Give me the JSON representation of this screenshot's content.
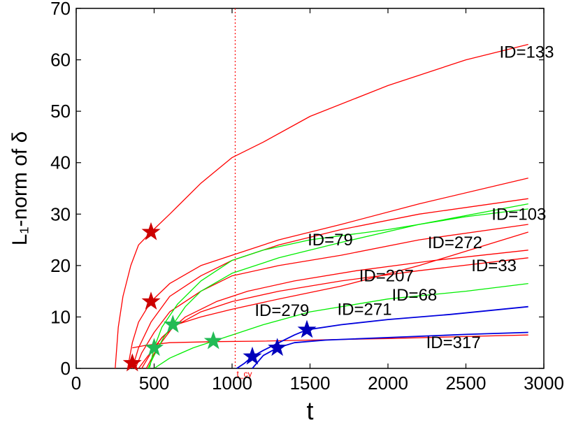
{
  "chart_data": {
    "type": "line",
    "title": "",
    "xlabel": "t",
    "ylabel": "L₁-norm of δ",
    "xlim": [
      0,
      3000
    ],
    "ylim": [
      0,
      70
    ],
    "xticks": [
      0,
      500,
      1000,
      1500,
      2000,
      2500,
      3000
    ],
    "yticks": [
      0,
      10,
      20,
      30,
      40,
      50,
      60,
      70
    ],
    "grid": false,
    "legend": "none",
    "vline": {
      "x": 1020,
      "label": "t_cy",
      "color": "#ff0000",
      "style": "dotted"
    },
    "series": [
      {
        "group": "red",
        "color": "#ff0000",
        "x": [
          250,
          270,
          300,
          350,
          400,
          480,
          600,
          800,
          1000,
          1200,
          1500,
          2000,
          2500,
          2900
        ],
        "y": [
          0,
          8,
          14,
          20,
          24,
          26.5,
          30,
          36,
          41,
          44,
          49,
          55,
          60,
          63
        ]
      },
      {
        "group": "red",
        "color": "#ff0000",
        "x": [
          330,
          360,
          400,
          480,
          600,
          800,
          1000,
          1300,
          1700,
          2200,
          2900
        ],
        "y": [
          0,
          5,
          9,
          13,
          16.5,
          20,
          22,
          25,
          28,
          32,
          37
        ]
      },
      {
        "group": "red",
        "color": "#ff0000",
        "x": [
          360,
          400,
          480,
          600,
          800,
          1000,
          1300,
          1700,
          2200,
          2900
        ],
        "y": [
          0,
          4,
          9,
          14,
          18,
          21,
          24,
          27,
          30,
          33
        ]
      },
      {
        "group": "red",
        "color": "#ff0000",
        "x": [
          380,
          420,
          500,
          600,
          800,
          1000,
          1300,
          1700,
          2200,
          2900
        ],
        "y": [
          0,
          3,
          7,
          11,
          15,
          18,
          20,
          22,
          25,
          28
        ]
      },
      {
        "group": "red",
        "color": "#ff0000",
        "x": [
          400,
          450,
          550,
          700,
          900,
          1100,
          1400,
          1800,
          2300,
          2900
        ],
        "y": [
          0,
          2,
          6,
          10,
          13,
          15,
          17,
          19,
          21,
          23
        ]
      },
      {
        "group": "red",
        "color": "#ff0000",
        "x": [
          420,
          480,
          550,
          640,
          800,
          1000,
          1300,
          1700,
          2200,
          2900
        ],
        "y": [
          0,
          3,
          6,
          8.5,
          10,
          11.5,
          13.5,
          16,
          20,
          26.5
        ]
      },
      {
        "group": "red",
        "color": "#ff0000",
        "x": [
          450,
          520,
          620,
          800,
          1000,
          1300,
          1700,
          2200,
          2900
        ],
        "y": [
          0,
          4,
          8,
          11,
          13,
          15,
          17,
          19,
          21.5
        ]
      },
      {
        "group": "red",
        "color": "#ff0000",
        "x": [
          360,
          450,
          600,
          900,
          1200,
          1500,
          2000,
          2500,
          2900
        ],
        "y": [
          4,
          4.5,
          5,
          5.2,
          5.3,
          5.5,
          5.8,
          6.2,
          6.5
        ]
      },
      {
        "group": "green",
        "color": "#00ee00",
        "x": [
          470,
          500,
          550,
          650,
          800,
          1000,
          1200,
          1500,
          2000,
          2500,
          2900
        ],
        "y": [
          0,
          4,
          8,
          12.5,
          17,
          21,
          23,
          25,
          27,
          29.5,
          31
        ]
      },
      {
        "group": "green",
        "color": "#00ee00",
        "x": [
          460,
          500,
          560,
          620,
          700,
          800,
          1000,
          1300,
          1700,
          2200,
          2900
        ],
        "y": [
          0,
          2.5,
          6,
          8.5,
          12,
          15,
          18.5,
          21.5,
          24.5,
          28,
          32
        ]
      },
      {
        "group": "green",
        "color": "#00ee00",
        "x": [
          500,
          600,
          750,
          880,
          1000,
          1200,
          1500,
          2000,
          2500,
          2900
        ],
        "y": [
          0,
          2,
          4,
          5.3,
          6.5,
          8.5,
          11,
          13.5,
          15,
          16.5
        ]
      },
      {
        "group": "blue",
        "color": "#0000dd",
        "x": [
          1030,
          1080,
          1130,
          1200,
          1300,
          1400,
          1480,
          1700,
          2000,
          2400,
          2900
        ],
        "y": [
          0,
          1,
          2.3,
          3.5,
          5,
          6.5,
          7.5,
          8.5,
          9.5,
          10.5,
          12
        ]
      },
      {
        "group": "blue",
        "color": "#0000dd",
        "x": [
          1130,
          1200,
          1290,
          1400,
          1600,
          2000,
          2500,
          2900
        ],
        "y": [
          0,
          2.5,
          4,
          5,
          5.5,
          6,
          6.6,
          7
        ]
      }
    ],
    "markers": [
      {
        "x": 360,
        "y": 1,
        "color": "#cc0000",
        "shape": "star"
      },
      {
        "x": 480,
        "y": 13,
        "color": "#cc0000",
        "shape": "star"
      },
      {
        "x": 480,
        "y": 26.5,
        "color": "#cc0000",
        "shape": "star"
      },
      {
        "x": 500,
        "y": 4,
        "color": "#22bb55",
        "shape": "star"
      },
      {
        "x": 620,
        "y": 8.5,
        "color": "#22bb55",
        "shape": "star"
      },
      {
        "x": 880,
        "y": 5.3,
        "color": "#22bb55",
        "shape": "star"
      },
      {
        "x": 1130,
        "y": 2.3,
        "color": "#0000bb",
        "shape": "star"
      },
      {
        "x": 1290,
        "y": 4,
        "color": "#0000bb",
        "shape": "star"
      },
      {
        "x": 1480,
        "y": 7.5,
        "color": "#0000bb",
        "shape": "star"
      }
    ],
    "annotations": [
      {
        "text": "ID=133",
        "x": 2890,
        "y": 61.5
      },
      {
        "text": "ID=103",
        "x": 2840,
        "y": 30
      },
      {
        "text": "ID=79",
        "x": 1630,
        "y": 25
      },
      {
        "text": "ID=272",
        "x": 2430,
        "y": 24.5
      },
      {
        "text": "ID=33",
        "x": 2680,
        "y": 20
      },
      {
        "text": "ID=207",
        "x": 1990,
        "y": 18
      },
      {
        "text": "ID=68",
        "x": 2170,
        "y": 14.3
      },
      {
        "text": "ID=279",
        "x": 1320,
        "y": 11.3
      },
      {
        "text": "ID=271",
        "x": 1850,
        "y": 11.5
      },
      {
        "text": "ID=317",
        "x": 2420,
        "y": 5
      }
    ]
  }
}
